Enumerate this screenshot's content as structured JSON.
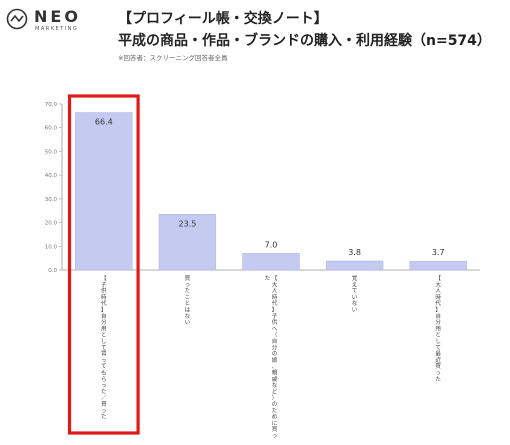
{
  "brand": {
    "name": "NEO",
    "sub": "MARKETING",
    "icon": "neo-logo-icon"
  },
  "header": {
    "title_line1": "【プロフィール帳・交換ノート】",
    "title_line2": "平成の商品・作品・ブランドの購入・利用経験（n=574）",
    "note": "※回答者：スクリーニング回答者全員"
  },
  "colors": {
    "bar": "#c5cbf0",
    "bar_stroke": "#aab2e4",
    "highlight": "#e01a1a",
    "axis": "#999999",
    "text": "#333333"
  },
  "chart_data": {
    "type": "bar",
    "title": "",
    "xlabel": "",
    "ylabel": "",
    "ylim": [
      0,
      70
    ],
    "yticks": [
      "70.0",
      "60.0",
      "50.0",
      "40.0",
      "30.0",
      "20.0",
      "10.0",
      "0.0"
    ],
    "categories": [
      "【子供時代】自分用として買ってもらった／買った",
      "買ったことはない",
      "【大人時代】子供へ（自分の娘、親戚など）のために買った",
      "覚えていない",
      "【大人時代】自分用として最近買った"
    ],
    "values": [
      66.4,
      23.5,
      7.0,
      3.8,
      3.7
    ],
    "value_labels": [
      "66.4",
      "23.5",
      "7.0",
      "3.8",
      "3.7"
    ],
    "highlight_index": 0,
    "grid": false
  }
}
